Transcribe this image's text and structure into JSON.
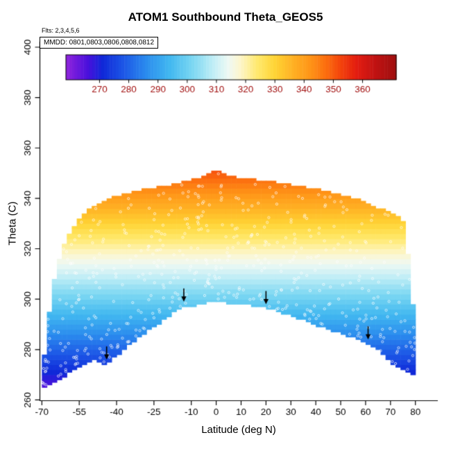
{
  "chart_data": {
    "type": "heatmap",
    "title": "ATOM1 Southbound Theta_GEOS5",
    "xlabel": "Latitude (deg N)",
    "ylabel": "Theta (C)",
    "annotations": {
      "flights": "Flts: 2,3,4,5,6",
      "dates": "MMDD: 0801,0803,0806,0808,0812"
    },
    "x_ticks": [
      -70,
      -55,
      -40,
      -25,
      -10,
      0,
      10,
      20,
      30,
      40,
      50,
      60,
      70,
      80
    ],
    "y_ticks": [
      260,
      280,
      300,
      320,
      340,
      360,
      380,
      400
    ],
    "xlim": [
      -70.8,
      89.0
    ],
    "ylim": [
      259.7,
      402.2
    ],
    "grid": false,
    "legend_position": "top-colorbar",
    "colorbar": {
      "range": [
        258.5,
        371.5
      ],
      "ticks": [
        270,
        280,
        290,
        300,
        310,
        320,
        330,
        340,
        350,
        360
      ],
      "palette": [
        [
          259,
          "#8B22DC"
        ],
        [
          266,
          "#4A10DC"
        ],
        [
          271,
          "#1028D8"
        ],
        [
          278,
          "#1C55E6"
        ],
        [
          286,
          "#2B8CEE"
        ],
        [
          294,
          "#42B8F0"
        ],
        [
          302,
          "#7DD8F2"
        ],
        [
          309,
          "#C2EEF6"
        ],
        [
          314,
          "#EEF9F4"
        ],
        [
          318,
          "#FDF6CE"
        ],
        [
          324,
          "#FFE96E"
        ],
        [
          330,
          "#FFD435"
        ],
        [
          336,
          "#FFB224"
        ],
        [
          342,
          "#FF9518"
        ],
        [
          348,
          "#FB6A0E"
        ],
        [
          353,
          "#F2400C"
        ],
        [
          358,
          "#E31C10"
        ],
        [
          364,
          "#C21313"
        ],
        [
          372,
          "#9C0E0E"
        ]
      ]
    },
    "field": {
      "description": "sampled theta envelope per latitude: [lat, theta_min, theta_max], colored by theta",
      "lat_step": 2,
      "columns": [
        [
          -69,
          265,
          278
        ],
        [
          -67,
          266,
          295
        ],
        [
          -65,
          267,
          308
        ],
        [
          -63,
          268,
          316
        ],
        [
          -61,
          269,
          322
        ],
        [
          -59,
          271,
          326
        ],
        [
          -57,
          272,
          329
        ],
        [
          -55,
          273,
          332
        ],
        [
          -53,
          274,
          334
        ],
        [
          -51,
          275,
          336
        ],
        [
          -49,
          276,
          337
        ],
        [
          -47,
          275,
          338
        ],
        [
          -45,
          274,
          339
        ],
        [
          -43,
          275,
          340
        ],
        [
          -41,
          277,
          341
        ],
        [
          -39,
          278,
          341
        ],
        [
          -37,
          280,
          342
        ],
        [
          -35,
          282,
          342
        ],
        [
          -33,
          283,
          343
        ],
        [
          -31,
          285,
          343
        ],
        [
          -29,
          286,
          344
        ],
        [
          -27,
          288,
          344
        ],
        [
          -25,
          289,
          344
        ],
        [
          -23,
          290,
          345
        ],
        [
          -21,
          292,
          345
        ],
        [
          -19,
          293,
          345
        ],
        [
          -17,
          295,
          346
        ],
        [
          -15,
          296,
          346
        ],
        [
          -13,
          297,
          347
        ],
        [
          -11,
          297,
          347
        ],
        [
          -9,
          297,
          348
        ],
        [
          -7,
          298,
          348
        ],
        [
          -5,
          298,
          349
        ],
        [
          -3,
          299,
          350
        ],
        [
          -1,
          299,
          351
        ],
        [
          1,
          299,
          351
        ],
        [
          3,
          299,
          350
        ],
        [
          5,
          298,
          349
        ],
        [
          7,
          298,
          349
        ],
        [
          9,
          298,
          348
        ],
        [
          11,
          298,
          348
        ],
        [
          13,
          298,
          348
        ],
        [
          15,
          297,
          348
        ],
        [
          17,
          297,
          347
        ],
        [
          19,
          297,
          347
        ],
        [
          21,
          296,
          347
        ],
        [
          23,
          296,
          347
        ],
        [
          25,
          295,
          346
        ],
        [
          27,
          294,
          346
        ],
        [
          29,
          294,
          346
        ],
        [
          31,
          293,
          345
        ],
        [
          33,
          292,
          345
        ],
        [
          35,
          292,
          345
        ],
        [
          37,
          291,
          344
        ],
        [
          39,
          290,
          344
        ],
        [
          41,
          289,
          344
        ],
        [
          43,
          289,
          343
        ],
        [
          45,
          288,
          343
        ],
        [
          47,
          287,
          342
        ],
        [
          49,
          287,
          342
        ],
        [
          51,
          286,
          341
        ],
        [
          53,
          285,
          341
        ],
        [
          55,
          285,
          340
        ],
        [
          57,
          284,
          340
        ],
        [
          59,
          283,
          339
        ],
        [
          61,
          282,
          338
        ],
        [
          63,
          281,
          337
        ],
        [
          65,
          280,
          336
        ],
        [
          67,
          278,
          336
        ],
        [
          69,
          276,
          335
        ],
        [
          71,
          274,
          334
        ],
        [
          73,
          273,
          333
        ],
        [
          75,
          272,
          331
        ],
        [
          77,
          271,
          318
        ],
        [
          79,
          270,
          298
        ]
      ]
    },
    "arrows": [
      [
        -44,
        276
      ],
      [
        -13,
        299
      ],
      [
        20,
        298
      ],
      [
        61,
        284
      ]
    ],
    "markers": {
      "style": "open-circle",
      "color": "#FFFFFF",
      "count": 520,
      "radius": 1.6,
      "seed": 11
    }
  }
}
